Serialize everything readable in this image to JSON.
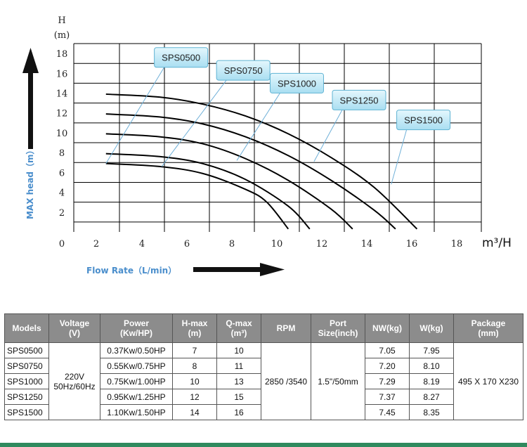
{
  "chart_data": {
    "type": "line",
    "xlabel_unit": "m³/H",
    "ylabel_unit_top": "H",
    "ylabel_unit_bottom": "(m)",
    "ylabel": "MAX head（m）",
    "xlabel": "Flow Rate（L/min）",
    "x_ticks": [
      "0",
      "2",
      "4",
      "6",
      "8",
      "10",
      "12",
      "14",
      "16",
      "18"
    ],
    "y_ticks": [
      "2",
      "4",
      "6",
      "8",
      "10",
      "12",
      "14",
      "16",
      "18"
    ],
    "xlim": [
      0,
      19
    ],
    "ylim": [
      0,
      19
    ],
    "grid": true,
    "series": [
      {
        "name": "SPS0500",
        "points": [
          [
            1.5,
            6.9
          ],
          [
            4,
            6.6
          ],
          [
            6,
            5.9
          ],
          [
            8,
            4.3
          ],
          [
            9,
            3.0
          ],
          [
            10,
            0.3
          ]
        ]
      },
      {
        "name": "SPS0750",
        "points": [
          [
            1.5,
            7.9
          ],
          [
            4,
            7.6
          ],
          [
            6,
            6.9
          ],
          [
            8,
            5.3
          ],
          [
            10,
            2.6
          ],
          [
            11,
            0.3
          ]
        ]
      },
      {
        "name": "SPS1000",
        "points": [
          [
            1.5,
            9.9
          ],
          [
            4,
            9.6
          ],
          [
            6,
            8.9
          ],
          [
            8,
            7.4
          ],
          [
            10,
            5.2
          ],
          [
            12,
            2.3
          ],
          [
            13,
            0.3
          ]
        ]
      },
      {
        "name": "SPS1250",
        "points": [
          [
            1.5,
            11.9
          ],
          [
            4,
            11.6
          ],
          [
            6,
            10.9
          ],
          [
            8,
            9.6
          ],
          [
            10,
            7.7
          ],
          [
            12,
            5.2
          ],
          [
            14,
            2.2
          ],
          [
            15,
            0.3
          ]
        ]
      },
      {
        "name": "SPS1500",
        "points": [
          [
            1.5,
            13.9
          ],
          [
            4,
            13.6
          ],
          [
            6,
            12.9
          ],
          [
            8,
            11.7
          ],
          [
            10,
            9.9
          ],
          [
            12,
            7.5
          ],
          [
            14,
            4.5
          ],
          [
            16,
            0.3
          ]
        ]
      }
    ],
    "callouts": [
      {
        "label": "SPS0500",
        "anchor": [
          1.5,
          6.9
        ],
        "box": [
          5,
          17.6
        ]
      },
      {
        "label": "SPS0750",
        "anchor": [
          4.1,
          6.6
        ],
        "box": [
          7.9,
          16.3
        ]
      },
      {
        "label": "SPS1000",
        "anchor": [
          7.6,
          7.2
        ],
        "box": [
          10.4,
          15.0
        ]
      },
      {
        "label": "SPS1250",
        "anchor": [
          11.2,
          7.1
        ],
        "box": [
          13.3,
          13.3
        ]
      },
      {
        "label": "SPS1500",
        "anchor": [
          14.8,
          4.8
        ],
        "box": [
          16.3,
          11.3
        ]
      }
    ]
  },
  "spec_table": {
    "headers": [
      [
        "Models"
      ],
      [
        "Voltage",
        "(V)"
      ],
      [
        "Power",
        "(Kw/HP)"
      ],
      [
        "H-max",
        "(m)"
      ],
      [
        "Q-max",
        "(m³)"
      ],
      [
        "RPM"
      ],
      [
        "Port",
        "Size(inch)"
      ],
      [
        "NW(kg)"
      ],
      [
        "W(kg)"
      ],
      [
        "Package",
        "(mm)"
      ]
    ],
    "voltage": [
      "220V",
      "50Hz/60Hz"
    ],
    "rpm": "2850 /3540",
    "port": "1.5\"/50mm",
    "package": "495 X 170 X230",
    "rows": [
      {
        "model": "SPS0500",
        "power": "0.37Kw/0.50HP",
        "hmax": "7",
        "qmax": "10",
        "nw": "7.05",
        "w": "7.95"
      },
      {
        "model": "SPS0750",
        "power": "0.55Kw/0.75HP",
        "hmax": "8",
        "qmax": "11",
        "nw": "7.20",
        "w": "8.10"
      },
      {
        "model": "SPS1000",
        "power": "0.75Kw/1.00HP",
        "hmax": "10",
        "qmax": "13",
        "nw": "7.29",
        "w": "8.19"
      },
      {
        "model": "SPS1250",
        "power": "0.95Kw/1.25HP",
        "hmax": "12",
        "qmax": "15",
        "nw": "7.37",
        "w": "8.27"
      },
      {
        "model": "SPS1500",
        "power": "1.10Kw/1.50HP",
        "hmax": "14",
        "qmax": "16",
        "nw": "7.45",
        "w": "8.35"
      }
    ]
  },
  "colors": {
    "grid": "#000000",
    "curve": "#000000",
    "callout_fill": "#c5ecf8",
    "callout_stroke": "#5fb3d3",
    "leader": "#6fb0d8",
    "axis_label": "#4a8ecc",
    "header_bg": "#8c8c8c",
    "arrow": "#111111",
    "bottom_strip": "#2f8a5e"
  },
  "icons": {
    "y_arrow": "arrow-up-icon",
    "x_arrow": "arrow-right-icon"
  }
}
